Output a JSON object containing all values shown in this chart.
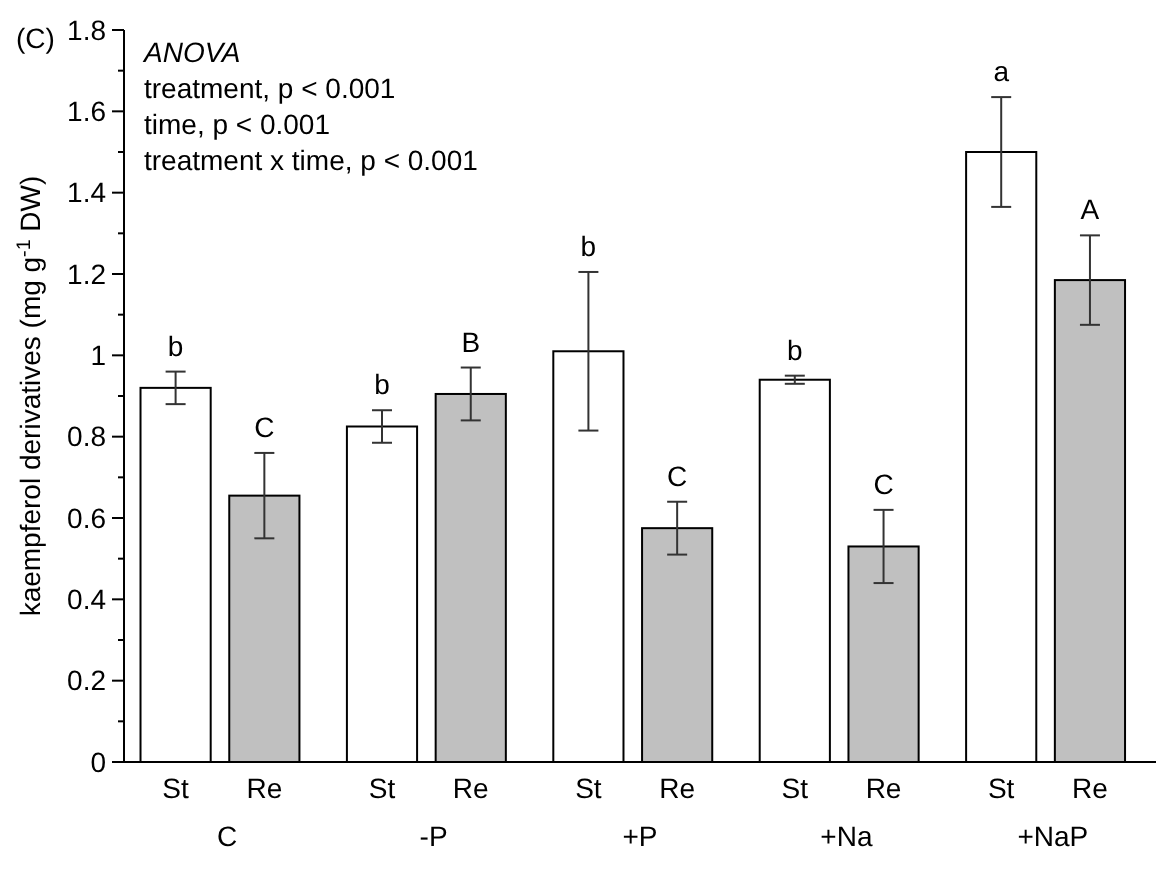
{
  "chart_data": {
    "type": "bar",
    "title": "(C)",
    "ylabel": "kaempferol derivatives (mg g$^{-1}$ DW)",
    "categories": [
      "C",
      "-P",
      "+P",
      "+Na",
      "+NaP"
    ],
    "series": [
      {
        "name": "St",
        "color": "#ffffff",
        "values": [
          0.92,
          0.825,
          1.01,
          0.94,
          1.5
        ],
        "errors": [
          0.04,
          0.04,
          0.195,
          0.01,
          0.135
        ],
        "value_labels": [
          "b",
          "b",
          "b",
          "b",
          "a"
        ]
      },
      {
        "name": "Re",
        "color": "#c0c0c0",
        "values": [
          0.655,
          0.905,
          0.575,
          0.53,
          1.185
        ],
        "errors": [
          0.105,
          0.065,
          0.065,
          0.09,
          0.11
        ],
        "value_labels": [
          "C",
          "B",
          "C",
          "C",
          "A"
        ]
      }
    ],
    "ylim": [
      0,
      1.8
    ],
    "yticks": [
      0,
      {
        "value": 0.1,
        "label": null
      },
      0.2,
      {
        "value": 0.3,
        "label": null
      },
      0.4,
      {
        "value": 0.5,
        "label": null
      },
      0.6,
      {
        "value": 0.7,
        "label": null
      },
      0.8,
      {
        "value": 0.9,
        "label": null
      },
      1,
      {
        "value": 1.1,
        "label": null
      },
      1.2,
      {
        "value": 1.3,
        "label": null
      },
      1.4,
      {
        "value": 1.5,
        "label": null
      },
      1.6,
      {
        "value": 1.7,
        "label": null
      },
      1.8
    ],
    "annotations": [
      "ANOVA",
      "treatment, p < 0.001",
      "time, p < 0.001",
      "treatment x time, p < 0.001"
    ],
    "grid": false
  }
}
